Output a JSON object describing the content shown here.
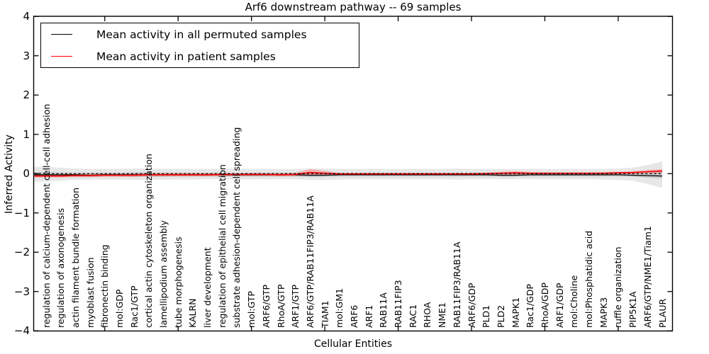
{
  "figure": {
    "title": "Arf6 downstream pathway -- 69 samples",
    "xlabel": "Cellular Entities",
    "ylabel": "Inferred Activity"
  },
  "legend": {
    "items": [
      {
        "label": "Mean activity in all permuted samples",
        "color": "#000000"
      },
      {
        "label": "Mean activity in patient samples",
        "color": "#ff0000"
      }
    ]
  },
  "chart_data": {
    "type": "line",
    "title": "Arf6 downstream pathway -- 69 samples",
    "xlabel": "Cellular Entities",
    "ylabel": "Inferred Activity",
    "ylim": [
      -4,
      4
    ],
    "yticks": [
      4,
      3,
      2,
      1,
      0,
      -1,
      -2,
      -3,
      -4
    ],
    "xticks_category_indices": [
      4,
      9,
      14,
      19,
      24,
      29,
      34,
      39
    ],
    "grid": false,
    "legend_position": "upper left",
    "categories": [
      "regulation of calcium-dependent cell-cell adhesion",
      "regulation of axonogenesis",
      "actin filament bundle formation",
      "myoblast fusion",
      "fibronectin binding",
      "mol:GDP",
      "Rac1/GTP",
      "cortical actin cytoskeleton organization",
      "lamellipodium assembly",
      "tube morphogenesis",
      "KALRN",
      "liver development",
      "regulation of epithelial cell migration",
      "substrate adhesion-dependent cell spreading",
      "mol:GTP",
      "ARF6/GTP",
      "RhoA/GTP",
      "ARF1/GTP",
      "ARF6/GTP/RAB11FIP3/RAB11A",
      "TIAM1",
      "mol:GM1",
      "ARF6",
      "ARF1",
      "RAB11A",
      "RAB11FIP3",
      "RAC1",
      "RHOA",
      "NME1",
      "RAB11FIP3/RAB11A",
      "ARF6/GDP",
      "PLD1",
      "PLD2",
      "MAPK1",
      "Rac1/GDP",
      "RhoA/GDP",
      "ARF1/GDP",
      "mol:Choline",
      "mol:Phosphatidic acid",
      "MAPK3",
      "ruffle organization",
      "PIP5K1A",
      "ARF6/GTP/NME1/Tiam1",
      "PLAUR"
    ],
    "series": [
      {
        "name": "Mean activity in all permuted samples",
        "color": "#000000",
        "width": 1.2,
        "values": [
          -0.03,
          -0.03,
          -0.03,
          -0.04,
          -0.03,
          -0.03,
          -0.03,
          -0.03,
          -0.03,
          -0.03,
          -0.03,
          -0.03,
          -0.03,
          -0.03,
          -0.03,
          -0.03,
          -0.03,
          -0.03,
          -0.04,
          -0.04,
          -0.03,
          -0.03,
          -0.03,
          -0.03,
          -0.03,
          -0.03,
          -0.03,
          -0.03,
          -0.03,
          -0.03,
          -0.03,
          -0.04,
          -0.04,
          -0.03,
          -0.03,
          -0.03,
          -0.03,
          -0.03,
          -0.03,
          -0.03,
          -0.04,
          -0.05,
          -0.06
        ]
      },
      {
        "name": "Mean activity in patient samples",
        "color": "#ff0000",
        "width": 1.6,
        "values": [
          -0.06,
          -0.06,
          -0.05,
          -0.05,
          -0.04,
          -0.04,
          -0.04,
          -0.03,
          -0.03,
          -0.03,
          -0.03,
          -0.03,
          -0.02,
          -0.02,
          -0.02,
          -0.02,
          -0.03,
          -0.02,
          0.03,
          0.01,
          -0.01,
          -0.01,
          -0.01,
          -0.01,
          -0.01,
          -0.01,
          -0.01,
          -0.01,
          -0.01,
          -0.01,
          0.0,
          0.01,
          0.02,
          0.01,
          0.01,
          0.01,
          0.01,
          0.01,
          0.01,
          0.02,
          0.03,
          0.05,
          0.07
        ]
      }
    ],
    "bands": [
      {
        "name": "permuted-spread-outer",
        "color": "rgba(110,110,110,0.17)",
        "upper": [
          0.17,
          0.15,
          0.13,
          0.12,
          0.12,
          0.12,
          0.13,
          0.13,
          0.12,
          0.12,
          0.12,
          0.12,
          0.12,
          0.13,
          0.12,
          0.12,
          0.12,
          0.12,
          0.13,
          0.13,
          0.12,
          0.12,
          0.12,
          0.12,
          0.12,
          0.12,
          0.12,
          0.12,
          0.13,
          0.12,
          0.12,
          0.12,
          0.12,
          0.12,
          0.12,
          0.12,
          0.12,
          0.12,
          0.12,
          0.13,
          0.15,
          0.22,
          0.31
        ],
        "lower": [
          -0.2,
          -0.18,
          -0.16,
          -0.15,
          -0.15,
          -0.15,
          -0.16,
          -0.16,
          -0.15,
          -0.15,
          -0.15,
          -0.14,
          -0.14,
          -0.15,
          -0.14,
          -0.14,
          -0.14,
          -0.14,
          -0.16,
          -0.16,
          -0.15,
          -0.14,
          -0.14,
          -0.14,
          -0.14,
          -0.14,
          -0.14,
          -0.14,
          -0.15,
          -0.14,
          -0.14,
          -0.14,
          -0.14,
          -0.14,
          -0.14,
          -0.14,
          -0.14,
          -0.14,
          -0.15,
          -0.16,
          -0.18,
          -0.26,
          -0.37
        ]
      },
      {
        "name": "permuted-spread-inner",
        "color": "rgba(90,90,90,0.22)",
        "upper": [
          0.04,
          0.03,
          0.02,
          0.02,
          0.02,
          0.02,
          0.03,
          0.03,
          0.02,
          0.02,
          0.02,
          0.02,
          0.02,
          0.02,
          0.02,
          0.02,
          0.02,
          0.02,
          0.03,
          0.03,
          0.02,
          0.02,
          0.02,
          0.02,
          0.02,
          0.02,
          0.02,
          0.02,
          0.02,
          0.02,
          0.02,
          0.02,
          0.02,
          0.02,
          0.02,
          0.02,
          0.02,
          0.02,
          0.02,
          0.03,
          0.04,
          0.05,
          0.06
        ],
        "lower": [
          -0.08,
          -0.08,
          -0.07,
          -0.08,
          -0.07,
          -0.07,
          -0.08,
          -0.08,
          -0.08,
          -0.07,
          -0.07,
          -0.07,
          -0.07,
          -0.07,
          -0.07,
          -0.07,
          -0.07,
          -0.07,
          -0.09,
          -0.08,
          -0.07,
          -0.07,
          -0.07,
          -0.07,
          -0.07,
          -0.07,
          -0.07,
          -0.07,
          -0.07,
          -0.07,
          -0.07,
          -0.08,
          -0.08,
          -0.07,
          -0.07,
          -0.07,
          -0.07,
          -0.07,
          -0.07,
          -0.07,
          -0.08,
          -0.1,
          -0.12
        ]
      },
      {
        "name": "patient-spread",
        "color": "rgba(255,0,0,0.22)",
        "upper": [
          -0.02,
          -0.02,
          -0.01,
          -0.01,
          0.0,
          0.0,
          0.0,
          0.01,
          0.01,
          0.01,
          0.01,
          0.01,
          0.01,
          0.01,
          0.01,
          0.01,
          0.01,
          0.02,
          0.12,
          0.07,
          0.02,
          0.02,
          0.02,
          0.02,
          0.02,
          0.02,
          0.02,
          0.02,
          0.02,
          0.02,
          0.03,
          0.05,
          0.06,
          0.04,
          0.03,
          0.03,
          0.03,
          0.03,
          0.04,
          0.05,
          0.06,
          0.09,
          0.12
        ],
        "lower": [
          -0.1,
          -0.1,
          -0.09,
          -0.09,
          -0.08,
          -0.08,
          -0.08,
          -0.07,
          -0.07,
          -0.07,
          -0.07,
          -0.07,
          -0.06,
          -0.06,
          -0.06,
          -0.06,
          -0.07,
          -0.06,
          -0.06,
          -0.05,
          -0.04,
          -0.04,
          -0.04,
          -0.04,
          -0.04,
          -0.04,
          -0.04,
          -0.04,
          -0.04,
          -0.04,
          -0.03,
          -0.03,
          -0.02,
          -0.02,
          -0.02,
          -0.02,
          -0.02,
          -0.02,
          -0.02,
          -0.01,
          0.0,
          0.01,
          0.02
        ]
      }
    ],
    "zero_line": {
      "y": 0,
      "style": "dashed",
      "color": "#000000"
    }
  }
}
